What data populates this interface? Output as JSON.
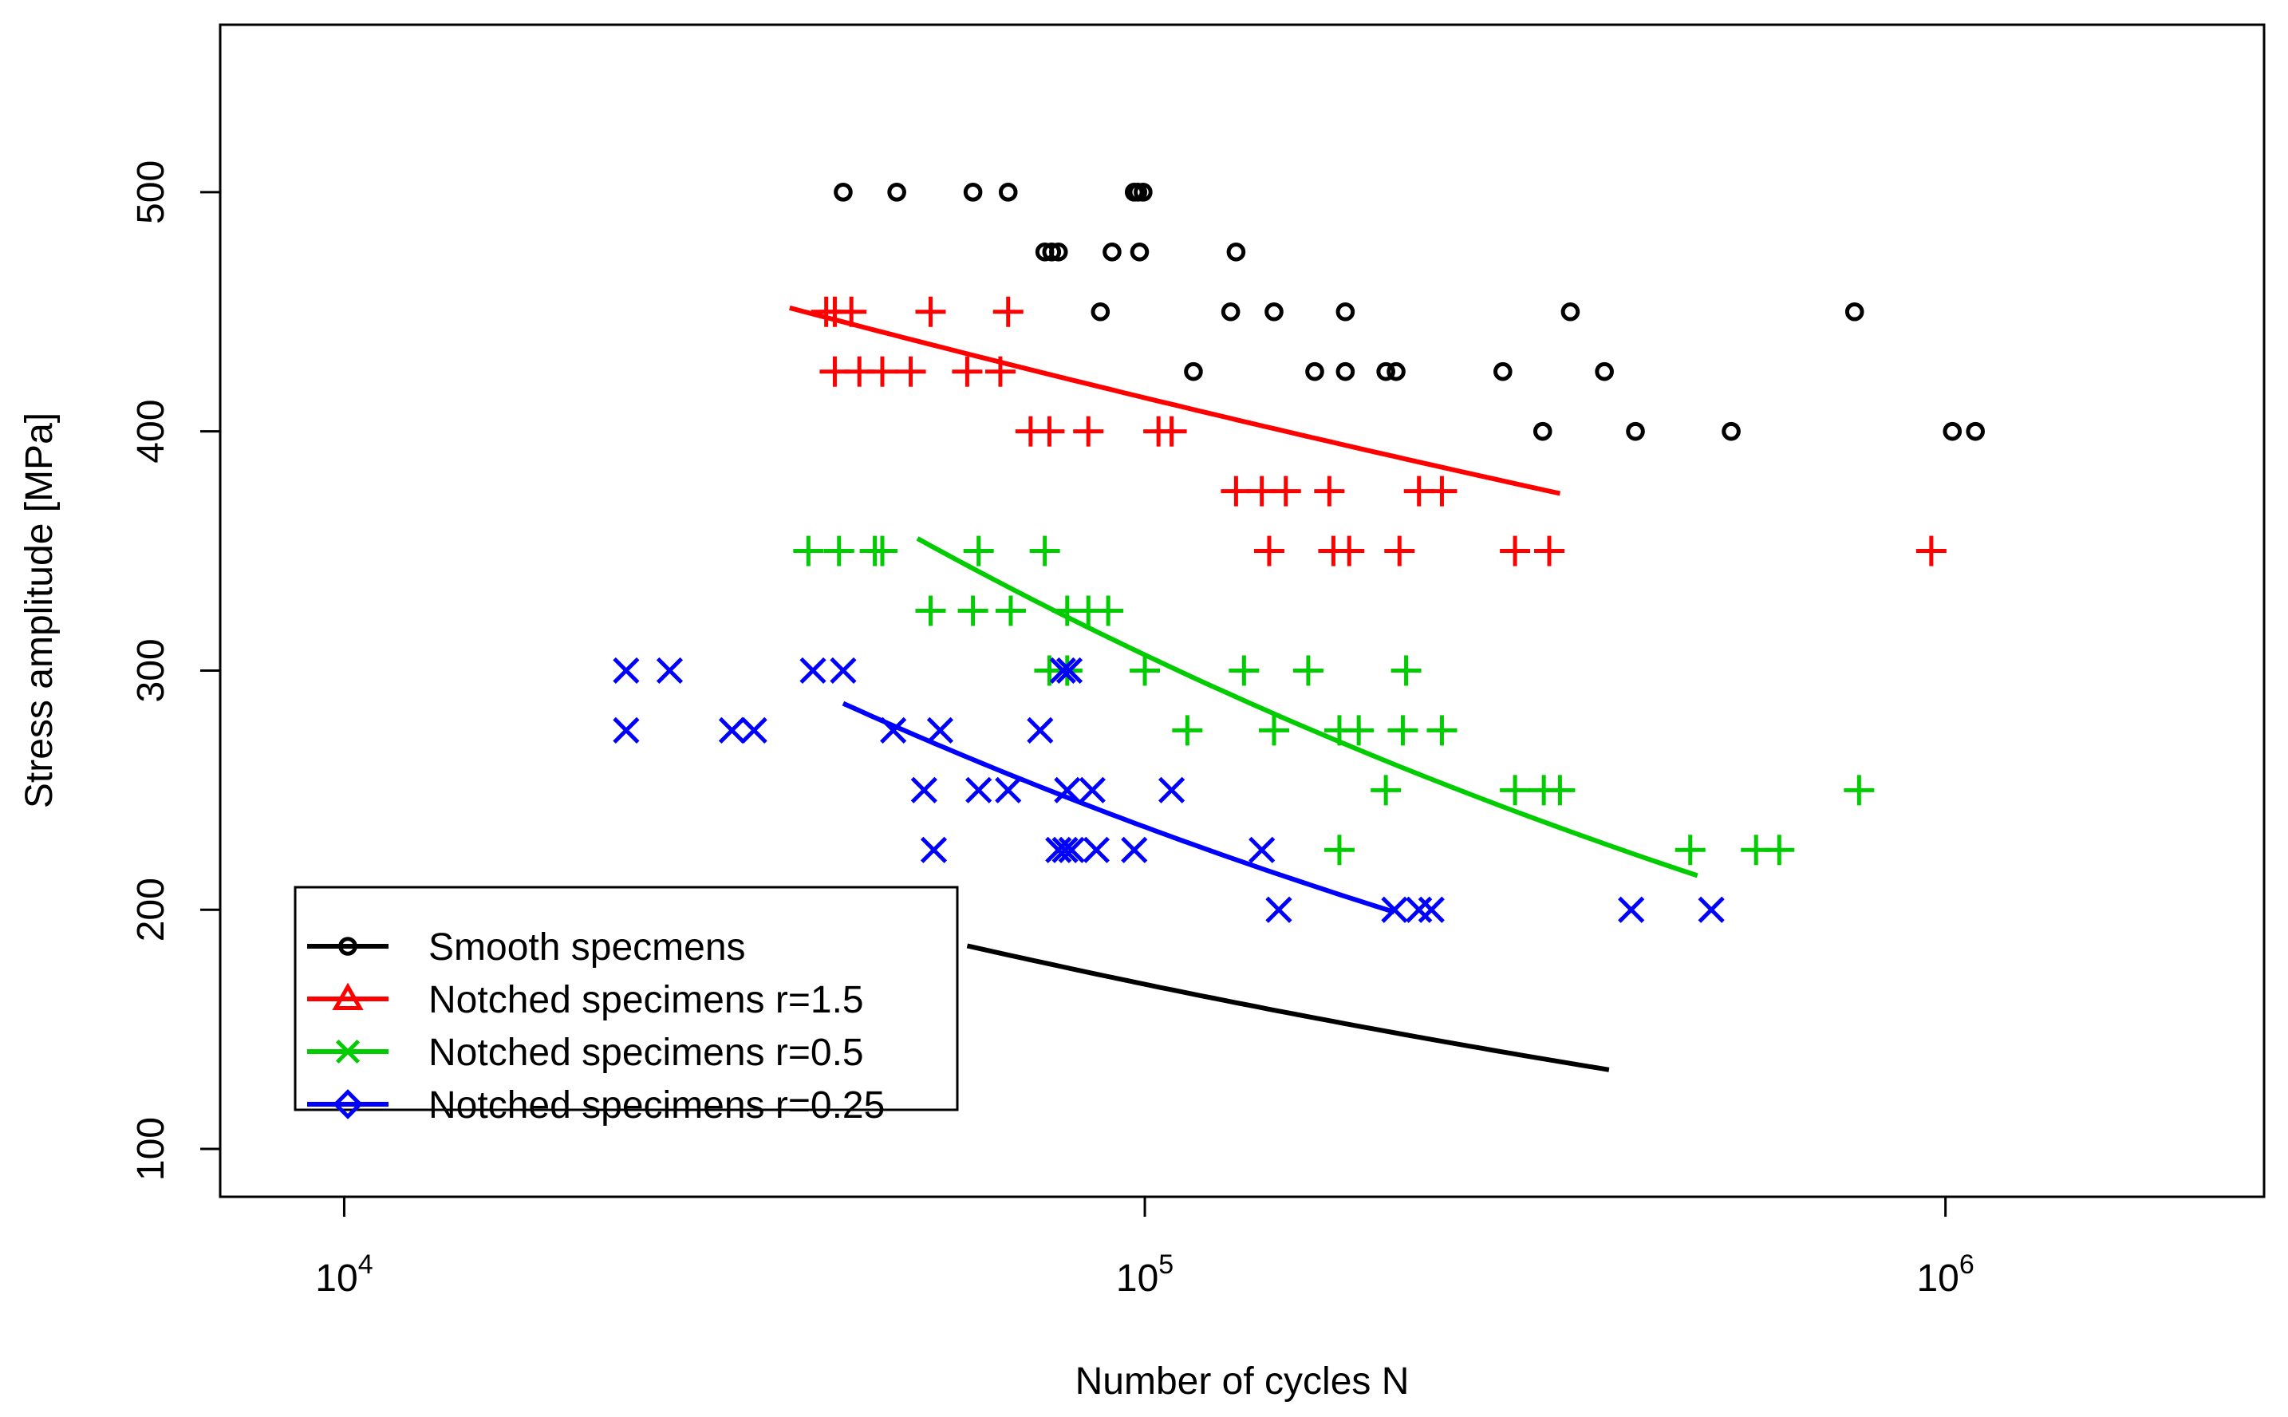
{
  "chart_data": {
    "type": "scatter",
    "title": "",
    "xlabel": "Number of cycles N",
    "ylabel": "Stress amplitude [MPa]",
    "x_scale": "log10",
    "xlim": [
      7000,
      2500000
    ],
    "ylim": [
      80,
      570
    ],
    "x_ticks": [
      {
        "value": 10000,
        "base": "10",
        "exp": "4"
      },
      {
        "value": 100000,
        "base": "10",
        "exp": "5"
      },
      {
        "value": 1000000,
        "base": "10",
        "exp": "6"
      }
    ],
    "y_ticks": [
      {
        "value": 100,
        "label": "100"
      },
      {
        "value": 200,
        "label": "200"
      },
      {
        "value": 300,
        "label": "300"
      },
      {
        "value": 400,
        "label": "400"
      },
      {
        "value": 500,
        "label": "500"
      }
    ],
    "legend_position": "bottom-left",
    "series": [
      {
        "name": "Smooth specmens",
        "color": "#000000",
        "marker": "circle",
        "legend_marker": "circle",
        "points": [
          [
            42000,
            500
          ],
          [
            49000,
            500
          ],
          [
            61000,
            500
          ],
          [
            67500,
            500
          ],
          [
            97000,
            500
          ],
          [
            98000,
            500
          ],
          [
            99500,
            500
          ],
          [
            75000,
            475
          ],
          [
            76500,
            475
          ],
          [
            78000,
            475
          ],
          [
            91000,
            475
          ],
          [
            98500,
            475
          ],
          [
            130000,
            475
          ],
          [
            88000,
            450
          ],
          [
            128000,
            450
          ],
          [
            145000,
            450
          ],
          [
            178000,
            450
          ],
          [
            340000,
            450
          ],
          [
            770000,
            450
          ],
          [
            115000,
            425
          ],
          [
            163000,
            425
          ],
          [
            178000,
            425
          ],
          [
            200000,
            425
          ],
          [
            206000,
            425
          ],
          [
            280000,
            425
          ],
          [
            375000,
            425
          ],
          [
            314000,
            400
          ],
          [
            410000,
            400
          ],
          [
            540000,
            400
          ],
          [
            1020000,
            400
          ],
          [
            1090000,
            400
          ]
        ],
        "fit": {
          "a": 1313.8,
          "b": -0.1782,
          "x_range": [
            60000,
            380000
          ]
        }
      },
      {
        "name": "Notched specimens r=1.5",
        "color": "#ff0000",
        "marker": "plus",
        "legend_marker": "triangle",
        "points": [
          [
            40000,
            450
          ],
          [
            41000,
            450
          ],
          [
            43000,
            450
          ],
          [
            54000,
            450
          ],
          [
            67500,
            450
          ],
          [
            41000,
            425
          ],
          [
            44000,
            425
          ],
          [
            47000,
            425
          ],
          [
            51000,
            425
          ],
          [
            60000,
            425
          ],
          [
            66000,
            425
          ],
          [
            72000,
            400
          ],
          [
            76000,
            400
          ],
          [
            85000,
            400
          ],
          [
            104000,
            400
          ],
          [
            108000,
            400
          ],
          [
            130000,
            375
          ],
          [
            140000,
            375
          ],
          [
            150000,
            375
          ],
          [
            170000,
            375
          ],
          [
            220000,
            375
          ],
          [
            235000,
            375
          ],
          [
            143000,
            350
          ],
          [
            172000,
            350
          ],
          [
            180000,
            350
          ],
          [
            208000,
            350
          ],
          [
            290000,
            350
          ],
          [
            320000,
            350
          ],
          [
            960000,
            350
          ]
        ],
        "fit": {
          "a": 1102.9,
          "b": -0.0851,
          "x_range": [
            36000,
            330000
          ]
        }
      },
      {
        "name": "Notched specimens r=0.5",
        "color": "#00cc00",
        "marker": "plus",
        "legend_marker": "x",
        "points": [
          [
            38000,
            350
          ],
          [
            41500,
            350
          ],
          [
            46000,
            350
          ],
          [
            47000,
            350
          ],
          [
            62000,
            350
          ],
          [
            75000,
            350
          ],
          [
            54000,
            325
          ],
          [
            61000,
            325
          ],
          [
            68000,
            325
          ],
          [
            80000,
            325
          ],
          [
            85000,
            325
          ],
          [
            90000,
            325
          ],
          [
            76000,
            300
          ],
          [
            80000,
            300
          ],
          [
            100000,
            300
          ],
          [
            133000,
            300
          ],
          [
            160000,
            300
          ],
          [
            212000,
            300
          ],
          [
            113000,
            275
          ],
          [
            145000,
            275
          ],
          [
            175000,
            275
          ],
          [
            185000,
            275
          ],
          [
            210000,
            275
          ],
          [
            235000,
            275
          ],
          [
            200000,
            250
          ],
          [
            290000,
            250
          ],
          [
            315000,
            250
          ],
          [
            330000,
            250
          ],
          [
            780000,
            250
          ],
          [
            175000,
            225
          ],
          [
            480000,
            225
          ],
          [
            580000,
            225
          ],
          [
            620000,
            225
          ]
        ],
        "fit": {
          "a": 4102.1,
          "b": -0.2253,
          "x_range": [
            52000,
            490000
          ]
        }
      },
      {
        "name": "Notched specimens r=0.25",
        "color": "#0000ff",
        "marker": "x",
        "legend_marker": "diamond",
        "points": [
          [
            22500,
            300
          ],
          [
            25500,
            300
          ],
          [
            38500,
            300
          ],
          [
            42000,
            300
          ],
          [
            79000,
            300
          ],
          [
            80500,
            300
          ],
          [
            22500,
            275
          ],
          [
            30500,
            275
          ],
          [
            32500,
            275
          ],
          [
            48500,
            275
          ],
          [
            55500,
            275
          ],
          [
            74000,
            275
          ],
          [
            53000,
            250
          ],
          [
            62000,
            250
          ],
          [
            67500,
            250
          ],
          [
            80000,
            250
          ],
          [
            86000,
            250
          ],
          [
            108000,
            250
          ],
          [
            54500,
            225
          ],
          [
            78000,
            225
          ],
          [
            79500,
            225
          ],
          [
            81000,
            225
          ],
          [
            87000,
            225
          ],
          [
            97000,
            225
          ],
          [
            140000,
            225
          ],
          [
            147000,
            200
          ],
          [
            205000,
            200
          ],
          [
            220000,
            200
          ],
          [
            228000,
            200
          ],
          [
            405000,
            200
          ],
          [
            510000,
            200
          ]
        ],
        "fit": {
          "a": 3287.7,
          "b": -0.2293,
          "x_range": [
            42000,
            205000
          ]
        }
      }
    ]
  }
}
